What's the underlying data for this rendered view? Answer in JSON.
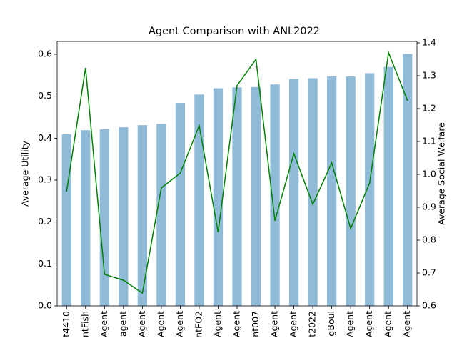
{
  "chart_data": {
    "type": "bar",
    "title": "Agent Comparison with ANL2022",
    "ylabel": "Average Utility",
    "y2label": "Average Social Welfare",
    "categories": [
      "t4410",
      "ntFish",
      "Agent",
      "agent",
      "Agent",
      "Agent",
      "Agent",
      "ntFO2",
      "Agent",
      "Agent",
      "nt007",
      "Agent",
      "Agent",
      "t2022",
      "gBoul",
      "Agent",
      "Agent",
      "Agent",
      "Agent"
    ],
    "series": [
      {
        "type": "bar",
        "color": "#8fbbd9",
        "values": [
          0.409,
          0.419,
          0.421,
          0.426,
          0.431,
          0.434,
          0.484,
          0.504,
          0.519,
          0.521,
          0.522,
          0.528,
          0.541,
          0.543,
          0.547,
          0.547,
          0.555,
          0.57,
          0.601
        ]
      },
      {
        "type": "line",
        "color": "#008000",
        "axis": "y2",
        "values": [
          0.948,
          1.324,
          0.696,
          0.678,
          0.639,
          0.959,
          1.004,
          1.148,
          0.824,
          1.27,
          1.35,
          0.859,
          1.063,
          0.909,
          1.035,
          0.835,
          0.974,
          1.37,
          1.224
        ]
      }
    ],
    "ylim": [
      0,
      0.6307
    ],
    "yticks": [
      {
        "value": 0,
        "label": "0.0"
      },
      0.1,
      0.2,
      0.3,
      0.4,
      0.5,
      0.6
    ],
    "y2lim": [
      0.6,
      1.4043
    ],
    "y2ticks": [
      0.6,
      0.7,
      0.8,
      0.9,
      {
        "value": 1,
        "label": "1.0"
      },
      1.1,
      1.2,
      1.3,
      1.4
    ]
  }
}
